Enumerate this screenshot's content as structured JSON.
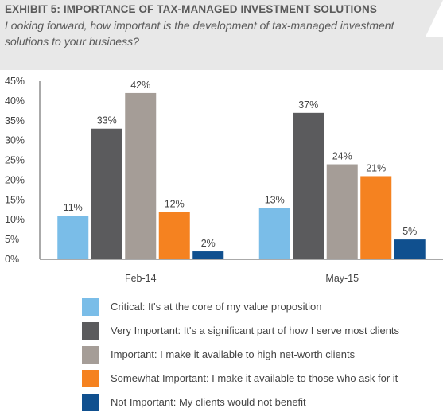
{
  "header": {
    "title": "EXHIBIT 5: IMPORTANCE OF TAX-MANAGED INVESTMENT SOLUTIONS",
    "subtitle": "Looking forward, how important is the development of tax-managed investment solutions to your business?"
  },
  "chart_data": {
    "type": "bar",
    "categories": [
      "Feb-14",
      "May-15"
    ],
    "series": [
      {
        "name": "Critical: It's at the core of my value proposition",
        "values": [
          11,
          13
        ],
        "labels": [
          "11%",
          "13%"
        ],
        "color": "#7abde8"
      },
      {
        "name": "Very Important: It's a significant part of how I serve most clients",
        "values": [
          33,
          37
        ],
        "labels": [
          "33%",
          "37%"
        ],
        "color": "#5b5b5d"
      },
      {
        "name": "Important: I make it available to high net-worth clients",
        "values": [
          42,
          24
        ],
        "labels": [
          "42%",
          "24%"
        ],
        "color": "#a59d97"
      },
      {
        "name": "Somewhat Important: I make it available to those who ask for it",
        "values": [
          12,
          21
        ],
        "labels": [
          "12%",
          "21%"
        ],
        "color": "#f58220"
      },
      {
        "name": "Not Important: My clients would not benefit",
        "values": [
          2,
          5
        ],
        "labels": [
          "2%",
          "5%"
        ],
        "color": "#10508f"
      }
    ],
    "ylim": [
      0,
      45
    ],
    "yticks": [
      "0%",
      "5%",
      "10%",
      "15%",
      "20%",
      "25%",
      "30%",
      "35%",
      "40%",
      "45%"
    ],
    "grid": false,
    "legend": "bottom"
  }
}
